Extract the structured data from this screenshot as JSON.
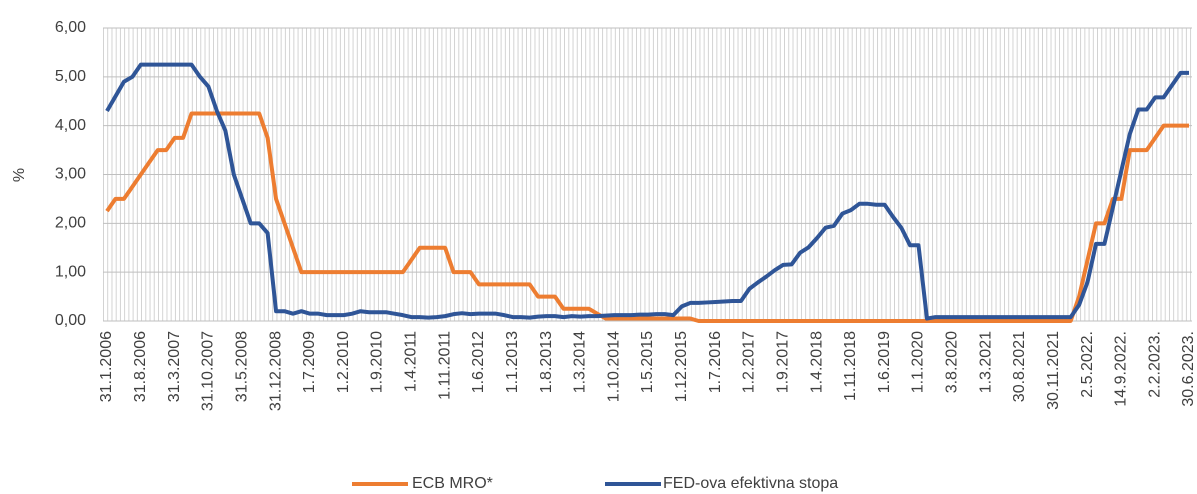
{
  "chart_data": {
    "type": "line",
    "y_label": "%",
    "categories": [
      "31.1.2006",
      null,
      null,
      null,
      "31.8.2006",
      null,
      null,
      null,
      "31.3.2007",
      null,
      null,
      null,
      "31.10.2007",
      null,
      null,
      null,
      "31.5.2008",
      null,
      null,
      null,
      "31.12.2008",
      null,
      null,
      null,
      "1.7.2009",
      null,
      null,
      null,
      "1.2.2010",
      null,
      null,
      null,
      "1.9.2010",
      null,
      null,
      null,
      "1.4.2011",
      null,
      null,
      null,
      "1.11.2011",
      null,
      null,
      null,
      "1.6.2012",
      null,
      null,
      null,
      "1.1.2013",
      null,
      null,
      null,
      "1.8.2013",
      null,
      null,
      null,
      "1.3.2014",
      null,
      null,
      null,
      "1.10.2014",
      null,
      null,
      null,
      "1.5.2015",
      null,
      null,
      null,
      "1.12.2015",
      null,
      null,
      null,
      "1.7.2016",
      null,
      null,
      null,
      "1.2.2017",
      null,
      null,
      null,
      "1.9.2017",
      null,
      null,
      null,
      "1.4.2018",
      null,
      null,
      null,
      "1.11.2018",
      null,
      null,
      null,
      "1.6.2019",
      null,
      null,
      null,
      "1.1.2020",
      null,
      null,
      null,
      "3.8.2020",
      null,
      null,
      null,
      "1.3.2021",
      null,
      null,
      null,
      "30.8.2021",
      null,
      null,
      null,
      "30.11.2021",
      null,
      null,
      null,
      "2.5.2022.",
      null,
      null,
      null,
      "14.9.2022.",
      null,
      null,
      null,
      "2.2.2023.",
      null,
      null,
      null,
      "30.6.2023."
    ],
    "series": [
      {
        "name": "ECB MRO*",
        "color": "#ed7d31",
        "values": [
          2.25,
          2.5,
          2.5,
          2.75,
          3.0,
          3.25,
          3.5,
          3.5,
          3.75,
          3.75,
          4.25,
          4.25,
          4.25,
          4.25,
          4.25,
          4.25,
          4.25,
          4.25,
          4.25,
          3.75,
          2.5,
          2.0,
          1.5,
          1.0,
          1.0,
          1.0,
          1.0,
          1.0,
          1.0,
          1.0,
          1.0,
          1.0,
          1.0,
          1.0,
          1.0,
          1.0,
          1.25,
          1.5,
          1.5,
          1.5,
          1.5,
          1.0,
          1.0,
          1.0,
          0.75,
          0.75,
          0.75,
          0.75,
          0.75,
          0.75,
          0.75,
          0.5,
          0.5,
          0.5,
          0.25,
          0.25,
          0.25,
          0.25,
          0.15,
          0.05,
          0.05,
          0.05,
          0.05,
          0.05,
          0.05,
          0.05,
          0.05,
          0.05,
          0.05,
          0.05,
          0,
          0,
          0,
          0,
          0,
          0,
          0,
          0,
          0,
          0,
          0,
          0,
          0,
          0,
          0,
          0,
          0,
          0,
          0,
          0,
          0,
          0,
          0,
          0,
          0,
          0,
          0,
          0,
          0,
          0,
          0,
          0,
          0,
          0,
          0,
          0,
          0,
          0,
          0,
          0,
          0,
          0,
          0,
          0,
          0,
          0.5,
          1.25,
          2.0,
          2.0,
          2.5,
          2.5,
          3.5,
          3.5,
          3.5,
          3.75,
          4.0,
          4.0,
          4.0,
          4.0
        ]
      },
      {
        "name": "FED-ova efektivna stopa",
        "color": "#2f5597",
        "values": [
          4.3,
          4.6,
          4.9,
          5.0,
          5.25,
          5.25,
          5.25,
          5.25,
          5.25,
          5.25,
          5.25,
          5.0,
          4.8,
          4.3,
          3.9,
          3.0,
          2.5,
          2.0,
          2.0,
          1.8,
          0.2,
          0.2,
          0.15,
          0.2,
          0.15,
          0.15,
          0.12,
          0.12,
          0.12,
          0.15,
          0.2,
          0.18,
          0.18,
          0.18,
          0.15,
          0.12,
          0.08,
          0.08,
          0.07,
          0.08,
          0.1,
          0.14,
          0.16,
          0.14,
          0.15,
          0.15,
          0.15,
          0.12,
          0.08,
          0.08,
          0.07,
          0.09,
          0.1,
          0.1,
          0.08,
          0.1,
          0.09,
          0.1,
          0.1,
          0.11,
          0.12,
          0.12,
          0.12,
          0.13,
          0.13,
          0.14,
          0.14,
          0.12,
          0.3,
          0.37,
          0.37,
          0.38,
          0.39,
          0.4,
          0.41,
          0.41,
          0.66,
          0.79,
          0.91,
          1.04,
          1.15,
          1.16,
          1.4,
          1.51,
          1.7,
          1.91,
          1.95,
          2.2,
          2.27,
          2.4,
          2.4,
          2.38,
          2.38,
          2.13,
          1.9,
          1.55,
          1.55,
          0.05,
          0.08,
          0.08,
          0.08,
          0.08,
          0.08,
          0.08,
          0.08,
          0.08,
          0.08,
          0.08,
          0.08,
          0.08,
          0.08,
          0.08,
          0.08,
          0.08,
          0.08,
          0.33,
          0.8,
          1.58,
          1.58,
          2.33,
          3.08,
          3.83,
          4.33,
          4.33,
          4.58,
          4.58,
          4.83,
          5.08,
          5.08
        ]
      }
    ],
    "ylim": [
      0,
      6
    ],
    "yticks": [
      {
        "value": 0,
        "label": "0,00"
      },
      {
        "value": 1,
        "label": "1,00"
      },
      {
        "value": 2,
        "label": "2,00"
      },
      {
        "value": 3,
        "label": "3,00"
      },
      {
        "value": 4,
        "label": "4,00"
      },
      {
        "value": 5,
        "label": "5,00"
      },
      {
        "value": 6,
        "label": "6,00"
      }
    ],
    "grid": true,
    "legend": "bottom"
  }
}
